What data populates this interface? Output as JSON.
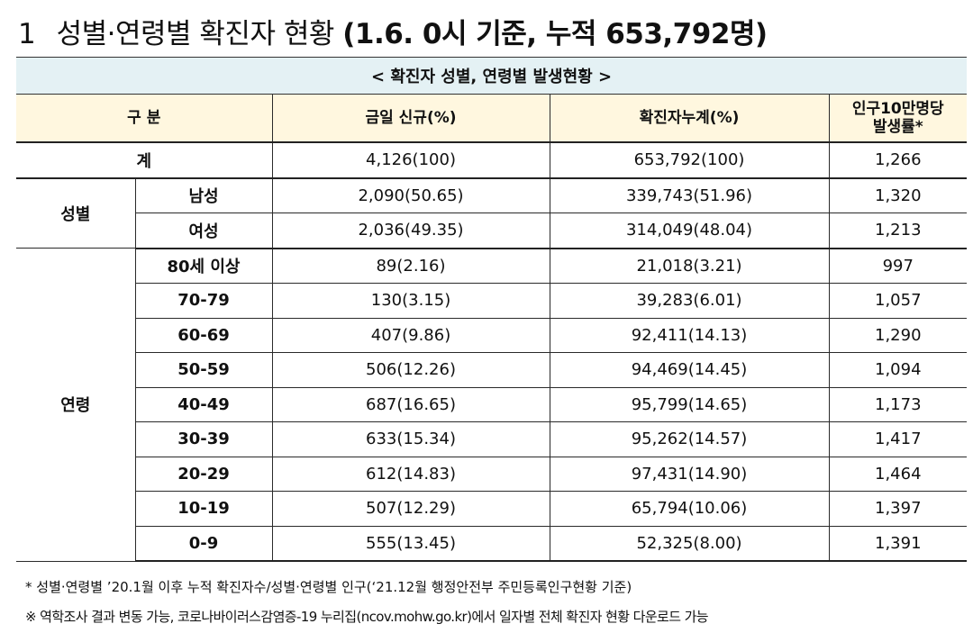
{
  "title": {
    "number": "1",
    "main": "성별·연령별 확진자 현황",
    "detail": "(1.6. 0시 기준, 누적 653,792명)"
  },
  "table": {
    "caption": "< 확진자 성별, 연령별 발생현황 >",
    "headers": {
      "category": "구 분",
      "new_cases": "금일 신규(%)",
      "cumulative": "확진자누계(%)",
      "rate_line1": "인구10만명당",
      "rate_line2": "발생률*"
    },
    "total": {
      "label": "계",
      "new": "4,126(100)",
      "cum": "653,792(100)",
      "rate": "1,266"
    },
    "sex_group": "성별",
    "sex_rows": [
      {
        "label": "남성",
        "new": "2,090(50.65)",
        "cum": "339,743(51.96)",
        "rate": "1,320"
      },
      {
        "label": "여성",
        "new": "2,036(49.35)",
        "cum": "314,049(48.04)",
        "rate": "1,213"
      }
    ],
    "age_group": "연령",
    "age_rows": [
      {
        "label": "80세 이상",
        "new": "89(2.16)",
        "cum": "21,018(3.21)",
        "rate": "997"
      },
      {
        "label": "70-79",
        "new": "130(3.15)",
        "cum": "39,283(6.01)",
        "rate": "1,057"
      },
      {
        "label": "60-69",
        "new": "407(9.86)",
        "cum": "92,411(14.13)",
        "rate": "1,290"
      },
      {
        "label": "50-59",
        "new": "506(12.26)",
        "cum": "94,469(14.45)",
        "rate": "1,094"
      },
      {
        "label": "40-49",
        "new": "687(16.65)",
        "cum": "95,799(14.65)",
        "rate": "1,173"
      },
      {
        "label": "30-39",
        "new": "633(15.34)",
        "cum": "95,262(14.57)",
        "rate": "1,417"
      },
      {
        "label": "20-29",
        "new": "612(14.83)",
        "cum": "97,431(14.90)",
        "rate": "1,464"
      },
      {
        "label": "10-19",
        "new": "507(12.29)",
        "cum": "65,794(10.06)",
        "rate": "1,397"
      },
      {
        "label": "0-9",
        "new": "555(13.45)",
        "cum": "52,325(8.00)",
        "rate": "1,391"
      }
    ]
  },
  "notes": [
    "* 성별·연령별 ’20.1월 이후 누적 확진자수/성별·연령별 인구(‘21.12월 행정안전부 주민등록인구현황 기준)",
    "※ 역학조사 결과 변동 가능, 코로나바이러스감염증-19 누리집(ncov.mohw.go.kr)에서 일자별 전체 확진자 현황 다운로드 가능"
  ],
  "colors": {
    "caption_bg": "#e4f1f4",
    "header_bg": "#fff7df"
  }
}
